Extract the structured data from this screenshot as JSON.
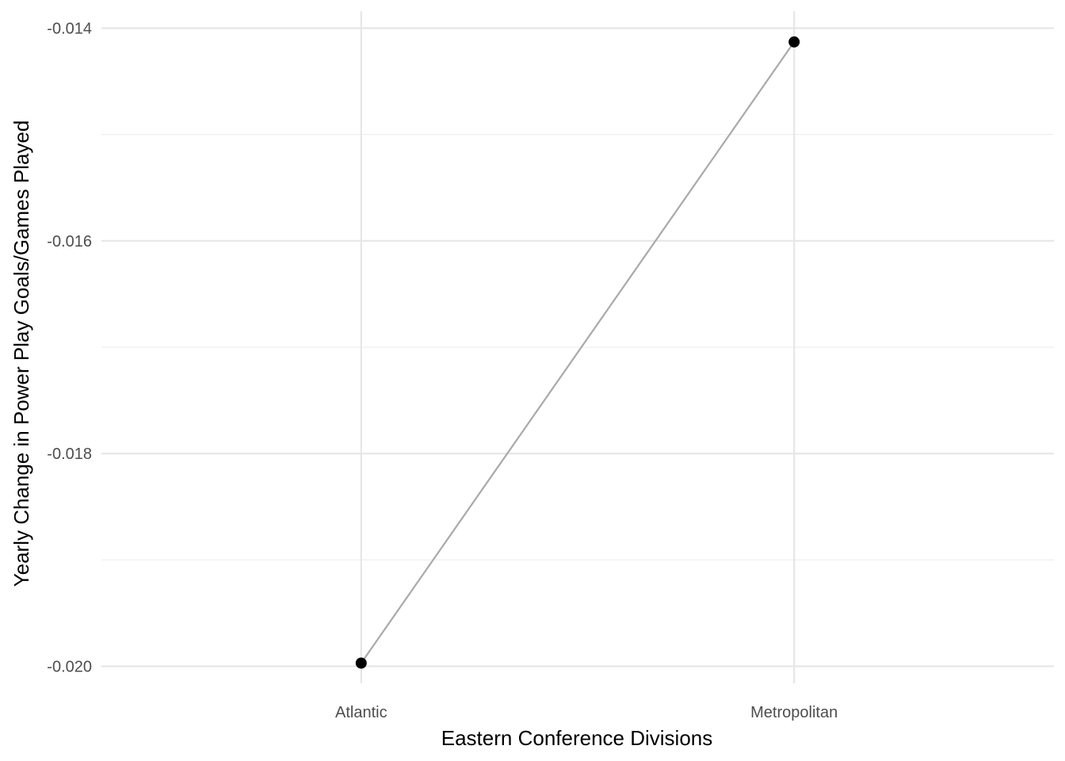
{
  "chart_data": {
    "type": "line",
    "title": "",
    "xlabel": "Eastern Conference Divisions",
    "ylabel": "Yearly Change in Power Play Goals/Games Played",
    "categories": [
      "Atlantic",
      "Metropolitan"
    ],
    "series": [
      {
        "name": "Yearly Change",
        "values": [
          -0.01997,
          -0.01413
        ],
        "line_color": "#a9a9a9",
        "point_color": "#000000"
      }
    ],
    "ylim": [
      -0.02016,
      -0.01384
    ],
    "y_ticks": [
      -0.02,
      -0.018,
      -0.016,
      -0.014
    ],
    "y_tick_labels": [
      "-0.020",
      "-0.018",
      "-0.016",
      "-0.014"
    ],
    "y_minor_ticks": [
      -0.019,
      -0.017,
      -0.015
    ],
    "grid": true,
    "legend": "none"
  }
}
